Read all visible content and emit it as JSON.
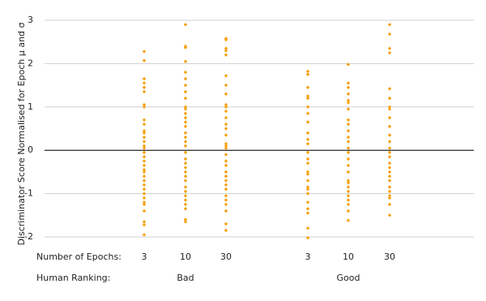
{
  "chart_data": {
    "type": "strip",
    "ylabel": "Discriminator Score Normalised for Epoch μ and σ",
    "row_labels": [
      "Number of Epochs:",
      "Human Ranking:"
    ],
    "color": "#f5a00f",
    "ylim": [
      -2,
      3
    ],
    "yticks": [
      -2,
      -1,
      0,
      1,
      2,
      3
    ],
    "grid": true,
    "zero_line": true,
    "groups": [
      {
        "label": "Bad",
        "columns": [
          {
            "label": "3",
            "values": [
              2.28,
              2.07,
              1.65,
              1.55,
              1.45,
              1.35,
              1.05,
              1.0,
              0.7,
              0.6,
              0.45,
              0.4,
              0.3,
              0.2,
              0.1,
              0.05,
              -0.05,
              -0.15,
              -0.25,
              -0.35,
              -0.45,
              -0.5,
              -0.6,
              -0.7,
              -0.8,
              -0.9,
              -1.0,
              -1.1,
              -1.2,
              -1.25,
              -1.4,
              -1.65,
              -1.72,
              -1.95
            ]
          },
          {
            "label": "10",
            "values": [
              2.9,
              2.4,
              2.37,
              2.05,
              1.8,
              1.65,
              1.5,
              1.35,
              1.2,
              1.0,
              0.95,
              0.85,
              0.75,
              0.65,
              0.55,
              0.4,
              0.3,
              0.2,
              0.1,
              -0.05,
              -0.2,
              -0.3,
              -0.4,
              -0.5,
              -0.6,
              -0.7,
              -0.85,
              -0.95,
              -1.05,
              -1.15,
              -1.25,
              -1.35,
              -1.6,
              -1.65
            ]
          },
          {
            "label": "30",
            "values": [
              2.58,
              2.55,
              2.35,
              2.3,
              2.2,
              1.72,
              1.5,
              1.3,
              1.05,
              1.0,
              0.9,
              0.75,
              0.6,
              0.5,
              0.35,
              0.15,
              0.1,
              0.05,
              -0.1,
              -0.25,
              -0.35,
              -0.5,
              -0.6,
              -0.7,
              -0.8,
              -0.9,
              -1.05,
              -1.15,
              -1.25,
              -1.4,
              -1.7,
              -1.85
            ]
          }
        ]
      },
      {
        "label": "Good",
        "columns": [
          {
            "label": "3",
            "values": [
              1.82,
              1.75,
              1.45,
              1.25,
              1.2,
              1.0,
              0.85,
              0.65,
              0.4,
              0.25,
              0.15,
              -0.05,
              -0.2,
              -0.3,
              -0.5,
              -0.55,
              -0.7,
              -0.85,
              -0.9,
              -1.0,
              -1.2,
              -1.35,
              -1.45,
              -1.8,
              -2.02
            ]
          },
          {
            "label": "10",
            "values": [
              1.98,
              1.55,
              1.45,
              1.3,
              1.15,
              1.1,
              0.95,
              0.7,
              0.6,
              0.45,
              0.3,
              0.2,
              0.05,
              -0.05,
              -0.2,
              -0.35,
              -0.5,
              -0.7,
              -0.75,
              -0.85,
              -0.95,
              -1.05,
              -1.15,
              -1.25,
              -1.4,
              -1.62
            ]
          },
          {
            "label": "30",
            "values": [
              2.9,
              2.68,
              2.35,
              2.25,
              1.42,
              1.2,
              1.0,
              0.95,
              0.75,
              0.55,
              0.35,
              0.2,
              0.05,
              -0.05,
              -0.15,
              -0.3,
              -0.4,
              -0.5,
              -0.6,
              -0.7,
              -0.85,
              -0.95,
              -1.05,
              -1.1,
              -1.25,
              -1.5
            ]
          }
        ]
      }
    ]
  }
}
